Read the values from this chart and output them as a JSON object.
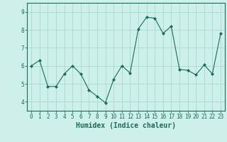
{
  "x": [
    0,
    1,
    2,
    3,
    4,
    5,
    6,
    7,
    8,
    9,
    10,
    11,
    12,
    13,
    14,
    15,
    16,
    17,
    18,
    19,
    20,
    21,
    22,
    23
  ],
  "y": [
    6.0,
    6.3,
    4.85,
    4.85,
    5.55,
    6.0,
    5.55,
    4.65,
    4.3,
    3.95,
    5.25,
    6.0,
    5.6,
    8.05,
    8.7,
    8.65,
    7.8,
    8.2,
    5.8,
    5.75,
    5.5,
    6.05,
    5.55,
    7.8
  ],
  "line_color": "#1a6b5a",
  "marker": "D",
  "marker_size": 2,
  "bg_color": "#cef0eb",
  "grid_color": "#aad8d0",
  "xlabel": "Humidex (Indice chaleur)",
  "ylim": [
    3.5,
    9.5
  ],
  "xlim": [
    -0.5,
    23.5
  ],
  "yticks": [
    4,
    5,
    6,
    7,
    8,
    9
  ],
  "xticks": [
    0,
    1,
    2,
    3,
    4,
    5,
    6,
    7,
    8,
    9,
    10,
    11,
    12,
    13,
    14,
    15,
    16,
    17,
    18,
    19,
    20,
    21,
    22,
    23
  ],
  "tick_color": "#1a6b5a",
  "label_fontsize": 5.5,
  "xlabel_fontsize": 7
}
